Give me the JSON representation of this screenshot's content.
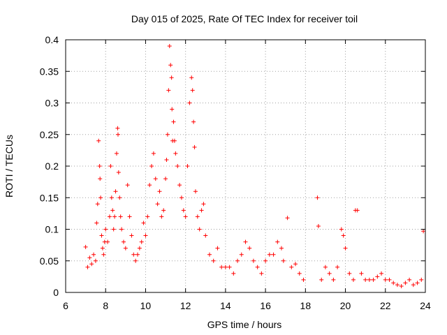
{
  "chart_data": {
    "type": "scatter",
    "title": "Day 015 of 2025, Rate Of TEC Index for receiver toil",
    "xlabel": "GPS time / hours",
    "ylabel": "ROTI / TECUs",
    "xlim": [
      6,
      24
    ],
    "ylim": [
      0,
      0.4
    ],
    "x_ticks": [
      6,
      8,
      10,
      12,
      14,
      16,
      18,
      20,
      22,
      24
    ],
    "x_tick_labels": [
      "6",
      "8",
      "10",
      "12",
      "14",
      "16",
      "18",
      "20",
      "22",
      "24"
    ],
    "y_ticks": [
      0,
      0.05,
      0.1,
      0.15,
      0.2,
      0.25,
      0.3,
      0.35,
      0.4
    ],
    "y_tick_labels": [
      "0",
      "0.05",
      "0.1",
      "0.15",
      "0.2",
      "0.25",
      "0.3",
      "0.35",
      "0.4"
    ],
    "grid": true,
    "marker": "+",
    "series": [
      {
        "name": "ROTI",
        "color": "#ff0000",
        "x": [
          7.0,
          7.1,
          7.2,
          7.3,
          7.4,
          7.5,
          7.55,
          7.6,
          7.65,
          7.7,
          7.72,
          7.75,
          7.8,
          7.85,
          7.9,
          7.95,
          8.0,
          8.1,
          8.2,
          8.25,
          8.3,
          8.35,
          8.4,
          8.45,
          8.5,
          8.55,
          8.6,
          8.62,
          8.65,
          8.7,
          8.75,
          8.8,
          8.9,
          9.0,
          9.1,
          9.2,
          9.3,
          9.4,
          9.5,
          9.6,
          9.7,
          9.8,
          9.9,
          10.0,
          10.1,
          10.2,
          10.3,
          10.4,
          10.5,
          10.6,
          10.7,
          10.8,
          10.9,
          11.0,
          11.05,
          11.1,
          11.15,
          11.2,
          11.25,
          11.3,
          11.32,
          11.35,
          11.4,
          11.45,
          11.5,
          11.6,
          11.7,
          11.8,
          11.9,
          12.0,
          12.1,
          12.2,
          12.3,
          12.35,
          12.4,
          12.45,
          12.5,
          12.6,
          12.7,
          12.8,
          12.9,
          13.0,
          13.2,
          13.4,
          13.6,
          13.8,
          14.0,
          14.2,
          14.4,
          14.6,
          14.8,
          15.0,
          15.2,
          15.4,
          15.6,
          15.8,
          16.0,
          16.2,
          16.4,
          16.6,
          16.8,
          16.9,
          17.1,
          17.3,
          17.5,
          17.7,
          17.9,
          18.6,
          18.65,
          18.8,
          19.0,
          19.2,
          19.4,
          19.6,
          19.8,
          19.9,
          20.0,
          20.2,
          20.4,
          20.5,
          20.6,
          20.8,
          21.0,
          21.2,
          21.4,
          21.6,
          21.8,
          22.0,
          22.2,
          22.4,
          22.6,
          22.8,
          23.0,
          23.2,
          23.4,
          23.6,
          23.8,
          23.9
        ],
        "y": [
          0.072,
          0.04,
          0.055,
          0.045,
          0.06,
          0.05,
          0.11,
          0.14,
          0.24,
          0.2,
          0.18,
          0.15,
          0.09,
          0.07,
          0.06,
          0.08,
          0.1,
          0.08,
          0.12,
          0.2,
          0.15,
          0.13,
          0.1,
          0.12,
          0.16,
          0.22,
          0.26,
          0.25,
          0.19,
          0.15,
          0.12,
          0.1,
          0.08,
          0.07,
          0.17,
          0.12,
          0.09,
          0.06,
          0.05,
          0.06,
          0.07,
          0.08,
          0.11,
          0.09,
          0.12,
          0.17,
          0.2,
          0.22,
          0.18,
          0.14,
          0.16,
          0.12,
          0.13,
          0.18,
          0.21,
          0.25,
          0.32,
          0.39,
          0.36,
          0.34,
          0.29,
          0.24,
          0.27,
          0.24,
          0.22,
          0.2,
          0.17,
          0.15,
          0.13,
          0.12,
          0.2,
          0.3,
          0.34,
          0.32,
          0.27,
          0.23,
          0.16,
          0.12,
          0.1,
          0.13,
          0.14,
          0.09,
          0.06,
          0.05,
          0.07,
          0.04,
          0.04,
          0.04,
          0.03,
          0.05,
          0.06,
          0.08,
          0.07,
          0.05,
          0.04,
          0.03,
          0.05,
          0.06,
          0.06,
          0.08,
          0.07,
          0.05,
          0.118,
          0.04,
          0.045,
          0.03,
          0.02,
          0.15,
          0.105,
          0.02,
          0.04,
          0.03,
          0.02,
          0.04,
          0.1,
          0.09,
          0.07,
          0.03,
          0.02,
          0.13,
          0.13,
          0.03,
          0.02,
          0.02,
          0.02,
          0.025,
          0.03,
          0.02,
          0.02,
          0.015,
          0.012,
          0.01,
          0.015,
          0.02,
          0.012,
          0.015,
          0.02,
          0.097
        ]
      }
    ]
  }
}
